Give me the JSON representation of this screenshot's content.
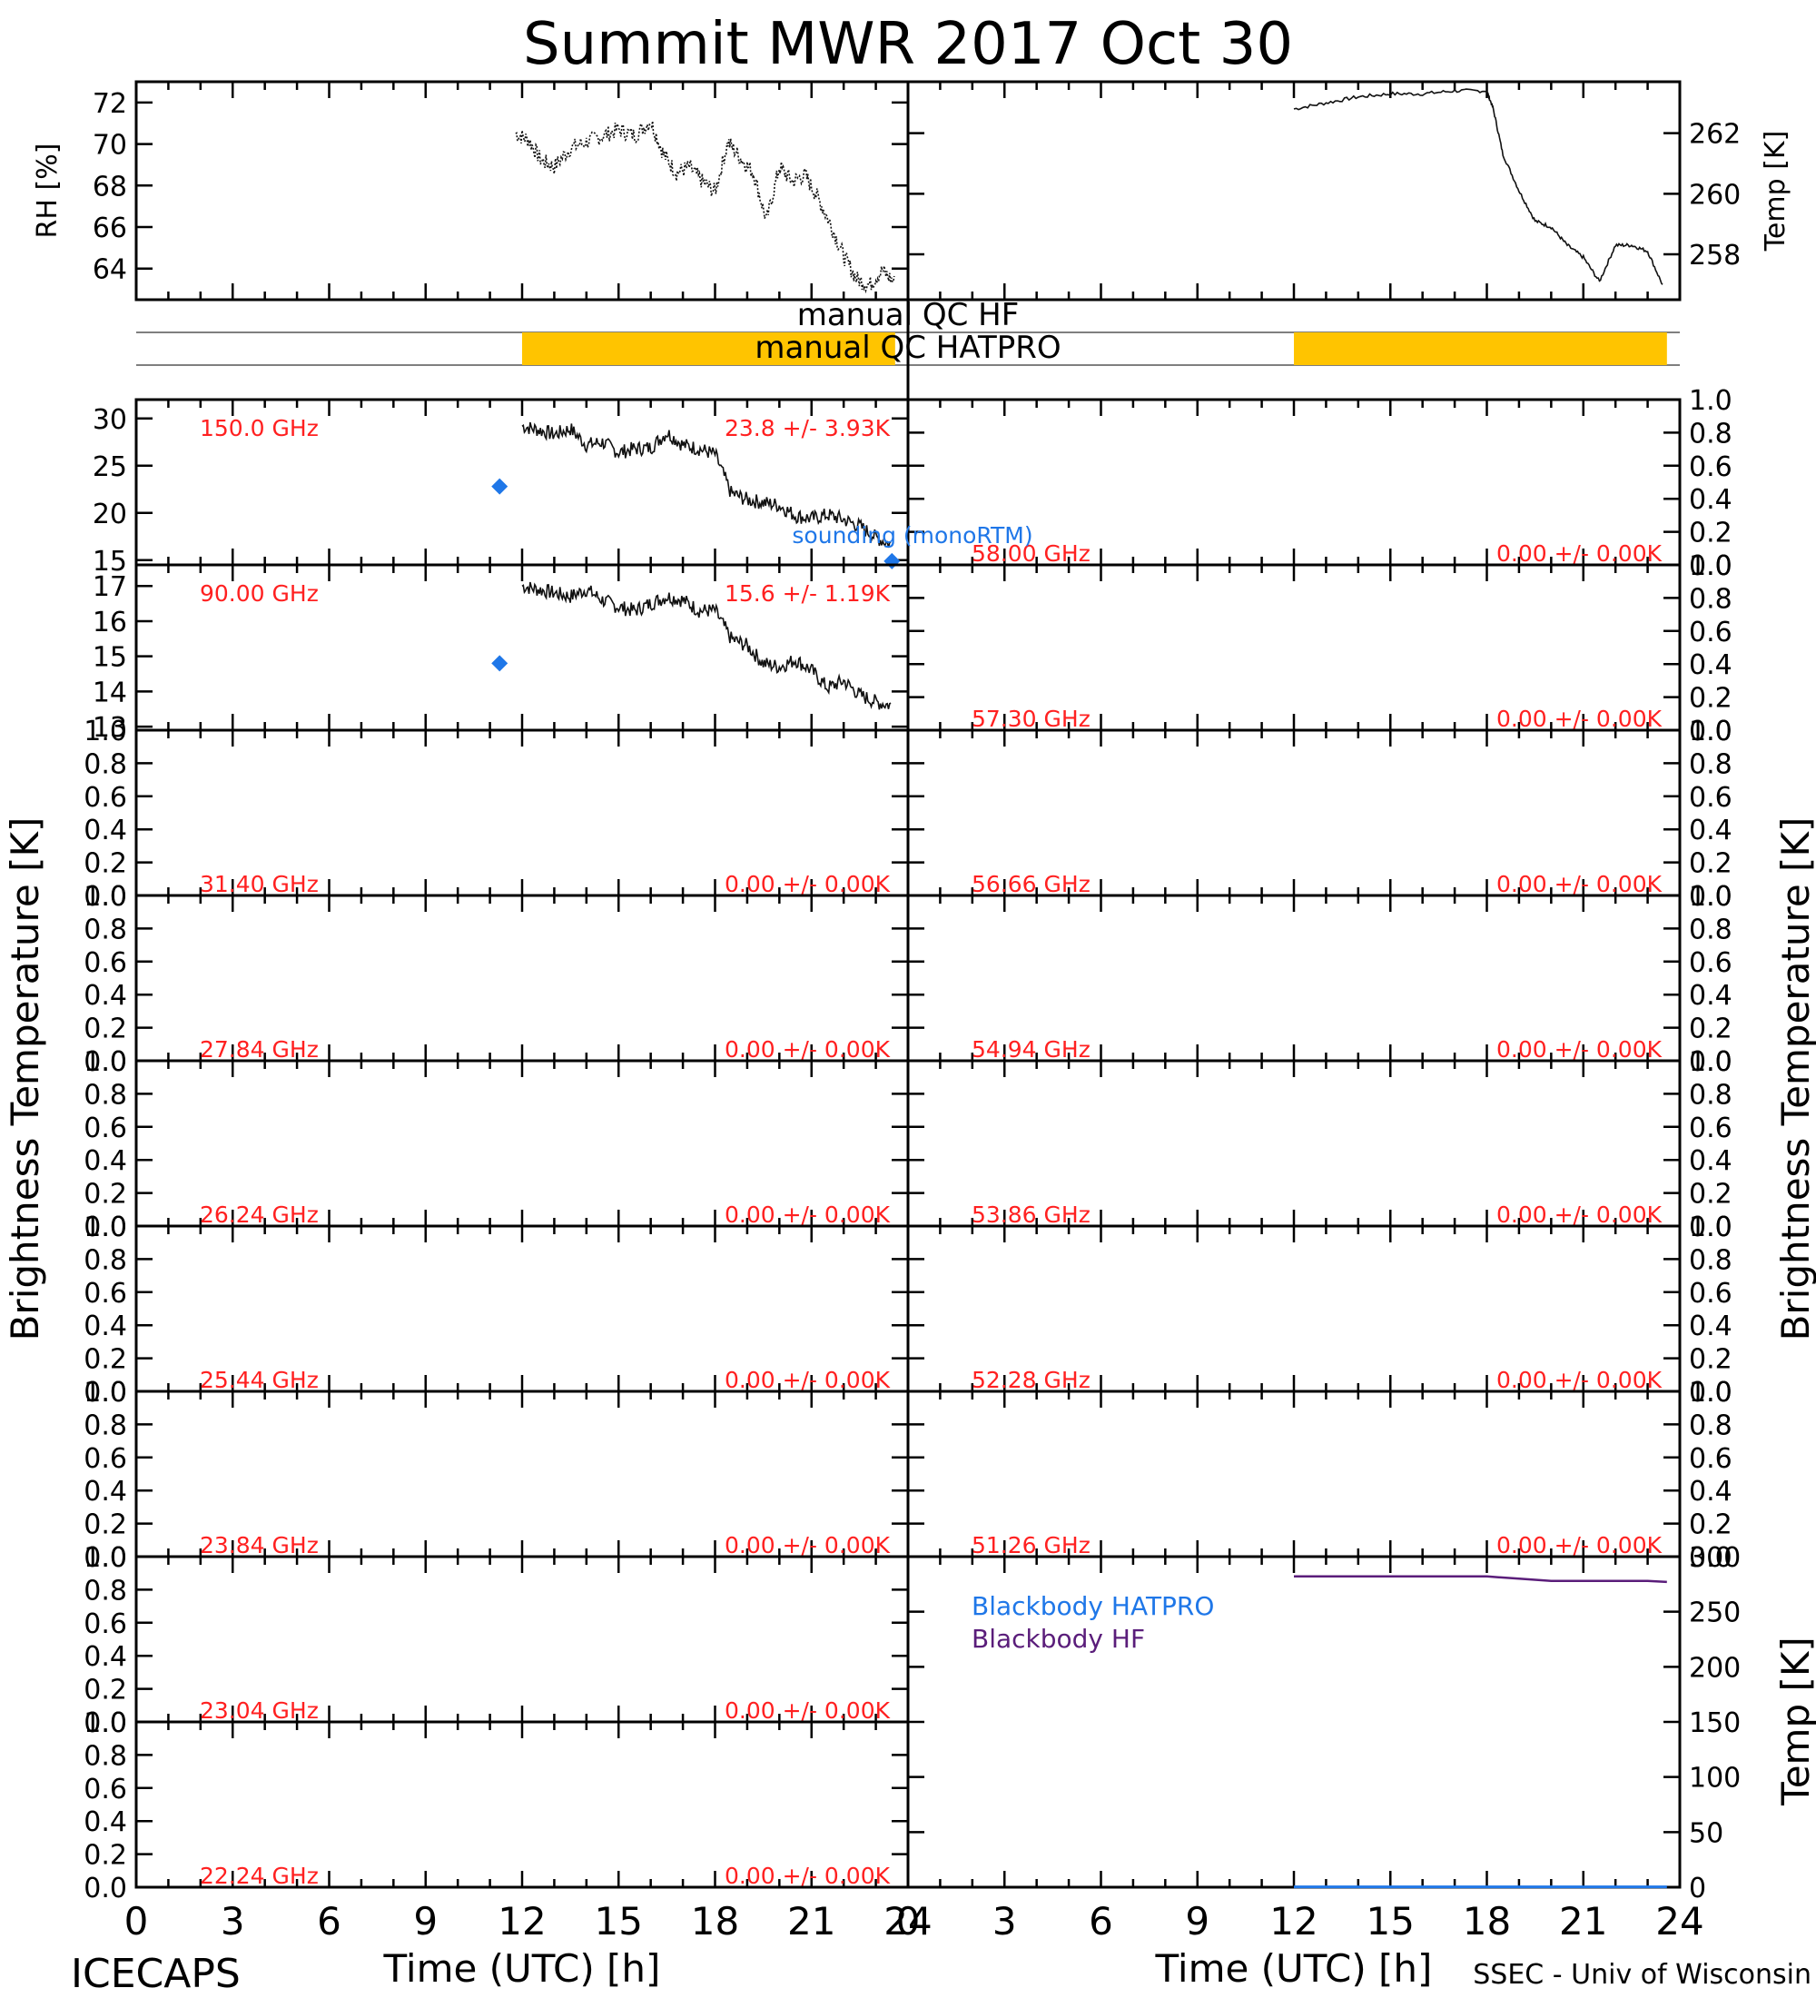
{
  "title": "Summit MWR 2017 Oct 30",
  "footer": {
    "left": "ICECAPS",
    "right": "SSEC - Univ of Wisconsin"
  },
  "labels": {
    "rh_axis": "RH [%]",
    "temp_axis": "Temp [K]",
    "tb_axis": "Brightness Temperature [K]",
    "bb_axis": "Temp [K]",
    "time_axis": "Time (UTC) [h]",
    "qc_hf": "manual QC HF",
    "qc_hatpro": "manual QC HATPRO",
    "sounding": "sounding (monoRTM)",
    "bb_hatpro": "Blackbody HATPRO",
    "bb_hf": "Blackbody HF"
  },
  "colors": {
    "qc_flag": "#ffc400",
    "sounding": "#1f77e8",
    "stats": "#ff2020",
    "bb_hatpro": "#1f77e8",
    "bb_hf": "#5a1d7a",
    "trace": "#111111"
  },
  "chart_data": [
    {
      "id": "rh",
      "type": "line",
      "ylabel": "RH [%]",
      "xlim": [
        0,
        24
      ],
      "ylim": [
        62.5,
        73
      ],
      "yticks": [
        "64",
        "66",
        "68",
        "70",
        "72"
      ],
      "x": [
        11.8,
        12.2,
        12.6,
        13.0,
        13.5,
        14.0,
        14.5,
        15.0,
        15.5,
        16.0,
        16.4,
        16.8,
        17.2,
        17.6,
        18.0,
        18.4,
        18.8,
        19.2,
        19.6,
        20.0,
        20.4,
        20.8,
        21.2,
        21.6,
        22.0,
        22.4,
        22.8,
        23.2,
        23.6
      ],
      "y": [
        70.5,
        70.2,
        69.2,
        68.9,
        69.8,
        70.1,
        70.4,
        70.7,
        70.4,
        71.1,
        69.5,
        68.6,
        68.9,
        68.2,
        67.7,
        70.1,
        69.3,
        68.6,
        66.3,
        68.9,
        68.2,
        68.5,
        67.4,
        66.1,
        64.6,
        63.5,
        63.2,
        63.9,
        63.3
      ]
    },
    {
      "id": "temp",
      "type": "line",
      "ylabel": "Temp [K]",
      "xlim": [
        0,
        24
      ],
      "ylim": [
        256.5,
        263.7
      ],
      "yticks": [
        "258",
        "260",
        "262"
      ],
      "x": [
        12.0,
        13.0,
        14.0,
        15.0,
        16.0,
        17.0,
        18.0,
        18.2,
        18.5,
        19.0,
        19.5,
        20.0,
        20.5,
        21.0,
        21.5,
        22.0,
        22.5,
        23.0,
        23.5
      ],
      "y": [
        262.8,
        263.0,
        263.2,
        263.3,
        263.3,
        263.4,
        263.4,
        262.8,
        261.3,
        260.1,
        259.1,
        258.9,
        258.3,
        257.9,
        257.1,
        258.3,
        258.3,
        258.1,
        256.9
      ]
    },
    {
      "id": "qc",
      "type": "bar",
      "xlim": [
        0,
        24
      ],
      "flags": [
        {
          "name": "manual QC HF",
          "intervals": []
        },
        {
          "name": "manual QC HATPRO",
          "intervals": [
            [
              12.0,
              23.6
            ]
          ]
        }
      ]
    },
    {
      "id": "bt150",
      "type": "line",
      "label": "150.0 GHz",
      "stats": "23.8 +/- 3.93K",
      "ylim": [
        14.5,
        32
      ],
      "xlim": [
        0,
        24
      ],
      "yticks": [
        "15",
        "20",
        "25",
        "30"
      ],
      "x": [
        12.0,
        12.5,
        13.0,
        13.5,
        14.0,
        14.5,
        15.0,
        15.5,
        16.0,
        16.5,
        17.0,
        17.5,
        18.0,
        18.5,
        19.0,
        19.5,
        20.0,
        20.5,
        21.0,
        21.5,
        22.0,
        22.5,
        23.0,
        23.5
      ],
      "y": [
        29.2,
        28.8,
        28.3,
        28.9,
        27.2,
        27.5,
        26.4,
        26.8,
        26.9,
        28.5,
        27.2,
        26.8,
        26.2,
        22.1,
        21.4,
        21.1,
        20.8,
        19.7,
        19.4,
        19.8,
        19.3,
        18.6,
        17.4,
        16.6
      ],
      "sounding": {
        "x": [
          11.3,
          23.5
        ],
        "y": [
          22.8,
          14.9
        ]
      }
    },
    {
      "id": "bt90",
      "type": "line",
      "label": "90.00 GHz",
      "stats": "15.6 +/- 1.19K",
      "ylim": [
        12.9,
        17.6
      ],
      "xlim": [
        0,
        24
      ],
      "yticks": [
        "13",
        "14",
        "15",
        "16",
        "17"
      ],
      "x": [
        12.0,
        12.5,
        13.0,
        13.5,
        14.0,
        14.5,
        15.0,
        15.5,
        16.0,
        16.5,
        17.0,
        17.5,
        18.0,
        18.5,
        19.0,
        19.5,
        20.0,
        20.5,
        21.0,
        21.5,
        22.0,
        22.5,
        23.0,
        23.5
      ],
      "y": [
        17.0,
        16.9,
        16.8,
        16.7,
        16.9,
        16.6,
        16.4,
        16.3,
        16.5,
        16.7,
        16.6,
        16.3,
        16.3,
        15.5,
        15.3,
        14.8,
        14.7,
        14.9,
        14.6,
        14.1,
        14.3,
        13.9,
        13.7,
        13.6
      ],
      "sounding": {
        "x": [
          11.3
        ],
        "y": [
          14.8
        ]
      }
    },
    {
      "id": "bt58",
      "type": "line",
      "label": "58.00 GHz",
      "stats": "0.00 +/- 0.00K",
      "ylim": [
        0,
        1
      ],
      "x": [],
      "y": []
    },
    {
      "id": "bt5730",
      "type": "line",
      "label": "57.30 GHz",
      "stats": "0.00 +/- 0.00K",
      "ylim": [
        0,
        1
      ],
      "x": [],
      "y": []
    },
    {
      "id": "bt3140",
      "type": "line",
      "label": "31.40 GHz",
      "stats": "0.00 +/- 0.00K",
      "ylim": [
        0,
        1
      ],
      "x": [],
      "y": []
    },
    {
      "id": "bt5666",
      "type": "line",
      "label": "56.66 GHz",
      "stats": "0.00 +/- 0.00K",
      "ylim": [
        0,
        1
      ],
      "x": [],
      "y": []
    },
    {
      "id": "bt2784",
      "type": "line",
      "label": "27.84 GHz",
      "stats": "0.00 +/- 0.00K",
      "ylim": [
        0,
        1
      ],
      "x": [],
      "y": []
    },
    {
      "id": "bt5494",
      "type": "line",
      "label": "54.94 GHz",
      "stats": "0.00 +/- 0.00K",
      "ylim": [
        0,
        1
      ],
      "x": [],
      "y": []
    },
    {
      "id": "bt2624",
      "type": "line",
      "label": "26.24 GHz",
      "stats": "0.00 +/- 0.00K",
      "ylim": [
        0,
        1
      ],
      "x": [],
      "y": []
    },
    {
      "id": "bt5386",
      "type": "line",
      "label": "53.86 GHz",
      "stats": "0.00 +/- 0.00K",
      "ylim": [
        0,
        1
      ],
      "x": [],
      "y": []
    },
    {
      "id": "bt2544",
      "type": "line",
      "label": "25.44 GHz",
      "stats": "0.00 +/- 0.00K",
      "ylim": [
        0,
        1
      ],
      "x": [],
      "y": []
    },
    {
      "id": "bt5228",
      "type": "line",
      "label": "52.28 GHz",
      "stats": "0.00 +/- 0.00K",
      "ylim": [
        0,
        1
      ],
      "x": [],
      "y": []
    },
    {
      "id": "bt2384",
      "type": "line",
      "label": "23.84 GHz",
      "stats": "0.00 +/- 0.00K",
      "ylim": [
        0,
        1
      ],
      "x": [],
      "y": []
    },
    {
      "id": "bt5126",
      "type": "line",
      "label": "51.26 GHz",
      "stats": "0.00 +/- 0.00K",
      "ylim": [
        0,
        1
      ],
      "x": [],
      "y": []
    },
    {
      "id": "bt2304",
      "type": "line",
      "label": "23.04 GHz",
      "stats": "0.00 +/- 0.00K",
      "ylim": [
        0,
        1
      ],
      "x": [],
      "y": []
    },
    {
      "id": "bt2224",
      "type": "line",
      "label": "22.24 GHz",
      "stats": "0.00 +/- 0.00K",
      "ylim": [
        0,
        1
      ],
      "x": [],
      "y": []
    },
    {
      "id": "blackbody",
      "type": "line",
      "ylabel": "Temp [K]",
      "ylim": [
        0,
        300
      ],
      "xlim": [
        0,
        24
      ],
      "yticks": [
        "0",
        "50",
        "100",
        "150",
        "200",
        "250",
        "300"
      ],
      "series": [
        {
          "name": "Blackbody HATPRO",
          "x": [
            12.0,
            23.6
          ],
          "y": [
            0.3,
            0.3
          ]
        },
        {
          "name": "Blackbody HF",
          "x": [
            12.0,
            13.0,
            14.0,
            15.0,
            16.0,
            17.0,
            18.0,
            19.0,
            20.0,
            21.0,
            22.0,
            23.0,
            23.6
          ],
          "y": [
            282,
            282,
            282,
            282,
            282,
            282,
            282,
            280,
            278,
            278,
            278,
            278,
            277
          ]
        }
      ]
    }
  ],
  "time_ticks": [
    "0",
    "3",
    "6",
    "9",
    "12",
    "15",
    "18",
    "21",
    "24"
  ],
  "bt_unit_ticks": [
    "0.0",
    "0.2",
    "0.4",
    "0.6",
    "0.8",
    "1.0"
  ]
}
